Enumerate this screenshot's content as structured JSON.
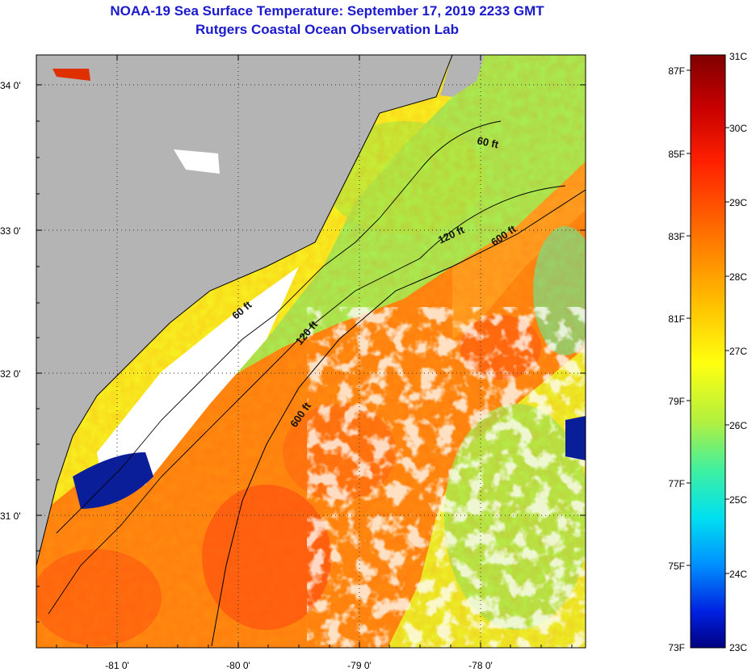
{
  "title": "NOAA-19 Sea Surface Temperature:  September 17, 2019 2233 GMT",
  "subtitle": "Rutgers Coastal Ocean Observation Lab",
  "lat_ticks": [
    "34 0'",
    "33 0'",
    "32 0'",
    "31 0'"
  ],
  "lon_ticks": [
    "-81 0'",
    "-80 0'",
    "-79 0'",
    "-78 0'"
  ],
  "contours": [
    "60 ft",
    "120 ft",
    "600 ft",
    "60 ft",
    "120 ft",
    "600 ft"
  ],
  "colorbar": {
    "fahrenheit": [
      "87F",
      "85F",
      "83F",
      "81F",
      "79F",
      "77F",
      "75F",
      "73F"
    ],
    "celsius": [
      "31C",
      "30C",
      "29C",
      "28C",
      "27C",
      "26C",
      "25C",
      "24C",
      "23C"
    ]
  },
  "colors": {
    "land": "#b4b4b4",
    "cloud": "#ffffff",
    "title": "#1a1acc"
  }
}
